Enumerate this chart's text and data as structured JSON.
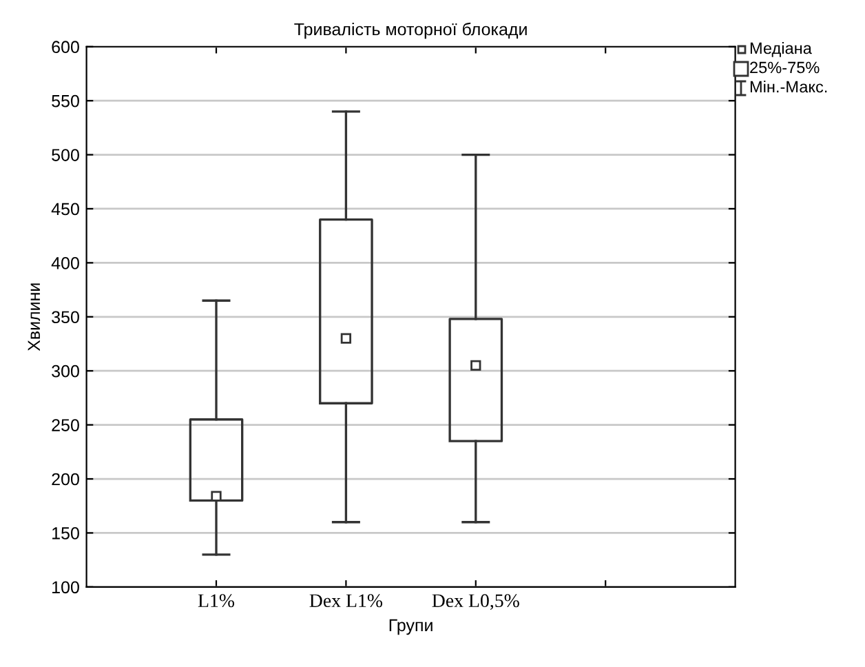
{
  "chart_data": {
    "type": "box",
    "title": "Тривалість моторної блокади",
    "xlabel": "Групи",
    "ylabel": "Хвилини",
    "categories": [
      "L1%",
      "Dex L1%",
      "Dex L0,5%",
      null
    ],
    "boxes": [
      {
        "low": 130,
        "q1": 180,
        "median": 184,
        "q3": 255,
        "high": 365
      },
      {
        "low": 160,
        "q1": 270,
        "median": 330,
        "q3": 440,
        "high": 540
      },
      {
        "low": 160,
        "q1": 235,
        "median": 305,
        "q3": 348,
        "high": 500
      },
      null
    ],
    "color": "#333333",
    "ylim": [
      100,
      600
    ],
    "yticks": [
      100,
      150,
      200,
      250,
      300,
      350,
      400,
      450,
      500,
      550,
      600
    ],
    "grid": "y",
    "marker": "square",
    "annotations": [
      "Медіана",
      "25%-75%",
      "Мін.-Макс."
    ]
  }
}
